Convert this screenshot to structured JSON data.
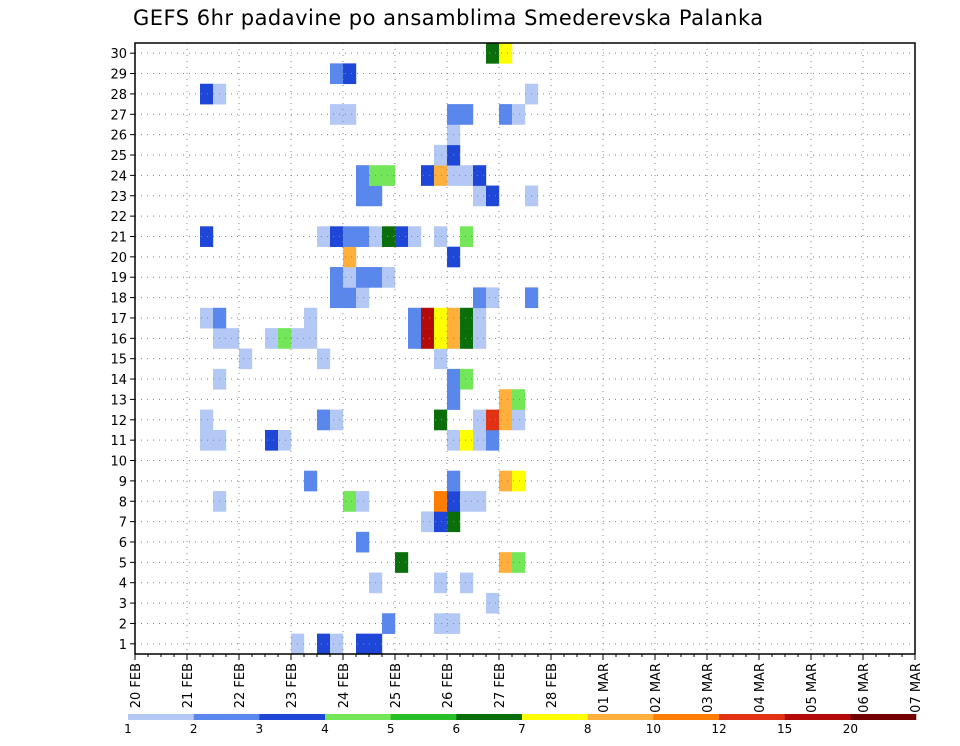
{
  "title": "GEFS 6hr padavine po ansamblima Smederevska Palanka",
  "chart_data": {
    "type": "heatmap",
    "title": "GEFS 6hr padavine po ansamblima Smederevska Palanka",
    "x_tick_labels": [
      "20 FEB",
      "21 FEB",
      "22 FEB",
      "23 FEB",
      "24 FEB",
      "25 FEB",
      "26 FEB",
      "27 FEB",
      "28 FEB",
      "01 MAR",
      "02 MAR",
      "03 MAR",
      "04 MAR",
      "05 MAR",
      "06 MAR",
      "07 MAR"
    ],
    "y_tick_labels": [
      "1",
      "2",
      "3",
      "4",
      "5",
      "6",
      "7",
      "8",
      "9",
      "10",
      "11",
      "12",
      "13",
      "14",
      "15",
      "16",
      "17",
      "18",
      "19",
      "20",
      "21",
      "22",
      "23",
      "24",
      "25",
      "26",
      "27",
      "28",
      "29",
      "30"
    ],
    "x_unit": "6-hour step since 20 FEB 00Z",
    "xlim": [
      0,
      60
    ],
    "ylim": [
      0,
      30
    ],
    "grid": true,
    "colorbar": {
      "labels": [
        "1",
        "2",
        "3",
        "4",
        "5",
        "6",
        "7",
        "8",
        "10",
        "12",
        "15",
        "20"
      ],
      "colors": [
        "#b4c8f5",
        "#5a87eb",
        "#1e46d7",
        "#73e65a",
        "#28be28",
        "#0a6e0a",
        "#ffff00",
        "#ffaf3c",
        "#ff7d00",
        "#e13214",
        "#b40a0a",
        "#730000"
      ]
    },
    "points": [
      {
        "x": 12.5,
        "y": 0,
        "v": "lb"
      },
      {
        "x": 14.5,
        "y": 0,
        "v": "db"
      },
      {
        "x": 15.5,
        "y": 0,
        "v": "lb"
      },
      {
        "x": 17.5,
        "y": 0,
        "v": "db"
      },
      {
        "x": 18.5,
        "y": 0,
        "v": "db"
      },
      {
        "x": 19.5,
        "y": 1,
        "v": "mb"
      },
      {
        "x": 23.5,
        "y": 1,
        "v": "lb"
      },
      {
        "x": 24.5,
        "y": 1,
        "v": "lb"
      },
      {
        "x": 27.5,
        "y": 2,
        "v": "lb"
      },
      {
        "x": 18.5,
        "y": 3,
        "v": "lb"
      },
      {
        "x": 23.5,
        "y": 3,
        "v": "lb"
      },
      {
        "x": 25.5,
        "y": 3,
        "v": "lb"
      },
      {
        "x": 20.5,
        "y": 4,
        "v": "dg"
      },
      {
        "x": 28.5,
        "y": 4,
        "v": "or"
      },
      {
        "x": 29.5,
        "y": 4,
        "v": "lg"
      },
      {
        "x": 17.5,
        "y": 5,
        "v": "mb"
      },
      {
        "x": 22.5,
        "y": 6,
        "v": "lb"
      },
      {
        "x": 23.5,
        "y": 6,
        "v": "db"
      },
      {
        "x": 24.5,
        "y": 6,
        "v": "dg"
      },
      {
        "x": 6.5,
        "y": 7,
        "v": "lb"
      },
      {
        "x": 16.5,
        "y": 7,
        "v": "lg"
      },
      {
        "x": 17.5,
        "y": 7,
        "v": "lb"
      },
      {
        "x": 23.5,
        "y": 7,
        "v": "do"
      },
      {
        "x": 24.5,
        "y": 7,
        "v": "db"
      },
      {
        "x": 25.5,
        "y": 7,
        "v": "lb"
      },
      {
        "x": 26.5,
        "y": 7,
        "v": "lb"
      },
      {
        "x": 13.5,
        "y": 8,
        "v": "mb"
      },
      {
        "x": 24.5,
        "y": 8,
        "v": "mb"
      },
      {
        "x": 28.5,
        "y": 8,
        "v": "or"
      },
      {
        "x": 29.5,
        "y": 8,
        "v": "ye"
      },
      {
        "x": 5.5,
        "y": 10,
        "v": "lb"
      },
      {
        "x": 6.5,
        "y": 10,
        "v": "lb"
      },
      {
        "x": 10.5,
        "y": 10,
        "v": "db"
      },
      {
        "x": 11.5,
        "y": 10,
        "v": "lb"
      },
      {
        "x": 24.5,
        "y": 10,
        "v": "lb"
      },
      {
        "x": 25.5,
        "y": 10,
        "v": "ye"
      },
      {
        "x": 26.5,
        "y": 10,
        "v": "lb"
      },
      {
        "x": 27.5,
        "y": 10,
        "v": "mb"
      },
      {
        "x": 5.5,
        "y": 11,
        "v": "lb"
      },
      {
        "x": 14.5,
        "y": 11,
        "v": "mb"
      },
      {
        "x": 15.5,
        "y": 11,
        "v": "lb"
      },
      {
        "x": 23.5,
        "y": 11,
        "v": "dg"
      },
      {
        "x": 26.5,
        "y": 11,
        "v": "lb"
      },
      {
        "x": 27.5,
        "y": 11,
        "v": "rd"
      },
      {
        "x": 28.5,
        "y": 11,
        "v": "or"
      },
      {
        "x": 29.5,
        "y": 11,
        "v": "lb"
      },
      {
        "x": 24.5,
        "y": 12,
        "v": "mb"
      },
      {
        "x": 28.5,
        "y": 12,
        "v": "or"
      },
      {
        "x": 29.5,
        "y": 12,
        "v": "lg"
      },
      {
        "x": 6.5,
        "y": 13,
        "v": "lb"
      },
      {
        "x": 24.5,
        "y": 13,
        "v": "mb"
      },
      {
        "x": 25.5,
        "y": 13,
        "v": "lg"
      },
      {
        "x": 8.5,
        "y": 14,
        "v": "lb"
      },
      {
        "x": 14.5,
        "y": 14,
        "v": "lb"
      },
      {
        "x": 23.5,
        "y": 14,
        "v": "lb"
      },
      {
        "x": 6.5,
        "y": 15,
        "v": "lb"
      },
      {
        "x": 7.5,
        "y": 15,
        "v": "lb"
      },
      {
        "x": 10.5,
        "y": 15,
        "v": "lb"
      },
      {
        "x": 11.5,
        "y": 15,
        "v": "lg"
      },
      {
        "x": 12.5,
        "y": 15,
        "v": "lb"
      },
      {
        "x": 13.5,
        "y": 15,
        "v": "lb"
      },
      {
        "x": 21.5,
        "y": 15,
        "v": "mb"
      },
      {
        "x": 22.5,
        "y": 15,
        "v": "dr"
      },
      {
        "x": 23.5,
        "y": 15,
        "v": "ye"
      },
      {
        "x": 24.5,
        "y": 15,
        "v": "or"
      },
      {
        "x": 25.5,
        "y": 15,
        "v": "dg"
      },
      {
        "x": 26.5,
        "y": 15,
        "v": "lb"
      },
      {
        "x": 5.5,
        "y": 16,
        "v": "lb"
      },
      {
        "x": 6.5,
        "y": 16,
        "v": "mb"
      },
      {
        "x": 13.5,
        "y": 16,
        "v": "lb"
      },
      {
        "x": 21.5,
        "y": 16,
        "v": "mb"
      },
      {
        "x": 22.5,
        "y": 16,
        "v": "dr"
      },
      {
        "x": 23.5,
        "y": 16,
        "v": "ye"
      },
      {
        "x": 24.5,
        "y": 16,
        "v": "or"
      },
      {
        "x": 25.5,
        "y": 16,
        "v": "dg"
      },
      {
        "x": 26.5,
        "y": 16,
        "v": "lb"
      },
      {
        "x": 15.5,
        "y": 17,
        "v": "mb"
      },
      {
        "x": 16.5,
        "y": 17,
        "v": "mb"
      },
      {
        "x": 17.5,
        "y": 17,
        "v": "lb"
      },
      {
        "x": 26.5,
        "y": 17,
        "v": "mb"
      },
      {
        "x": 27.5,
        "y": 17,
        "v": "lb"
      },
      {
        "x": 30.5,
        "y": 17,
        "v": "mb"
      },
      {
        "x": 15.5,
        "y": 18,
        "v": "mb"
      },
      {
        "x": 16.5,
        "y": 18,
        "v": "lb"
      },
      {
        "x": 17.5,
        "y": 18,
        "v": "mb"
      },
      {
        "x": 18.5,
        "y": 18,
        "v": "mb"
      },
      {
        "x": 19.5,
        "y": 18,
        "v": "lb"
      },
      {
        "x": 16.5,
        "y": 19,
        "v": "or"
      },
      {
        "x": 24.5,
        "y": 19,
        "v": "db"
      },
      {
        "x": 5.5,
        "y": 20,
        "v": "db"
      },
      {
        "x": 14.5,
        "y": 20,
        "v": "lb"
      },
      {
        "x": 15.5,
        "y": 20,
        "v": "db"
      },
      {
        "x": 16.5,
        "y": 20,
        "v": "mb"
      },
      {
        "x": 17.5,
        "y": 20,
        "v": "mb"
      },
      {
        "x": 18.5,
        "y": 20,
        "v": "lb"
      },
      {
        "x": 19.5,
        "y": 20,
        "v": "dg"
      },
      {
        "x": 20.5,
        "y": 20,
        "v": "db"
      },
      {
        "x": 21.5,
        "y": 20,
        "v": "lb"
      },
      {
        "x": 23.5,
        "y": 20,
        "v": "lb"
      },
      {
        "x": 25.5,
        "y": 20,
        "v": "lg"
      },
      {
        "x": 17.5,
        "y": 22,
        "v": "mb"
      },
      {
        "x": 18.5,
        "y": 22,
        "v": "mb"
      },
      {
        "x": 26.5,
        "y": 22,
        "v": "lb"
      },
      {
        "x": 27.5,
        "y": 22,
        "v": "db"
      },
      {
        "x": 30.5,
        "y": 22,
        "v": "lb"
      },
      {
        "x": 17.5,
        "y": 23,
        "v": "mb"
      },
      {
        "x": 18.5,
        "y": 23,
        "v": "lg"
      },
      {
        "x": 19.5,
        "y": 23,
        "v": "lg"
      },
      {
        "x": 22.5,
        "y": 23,
        "v": "db"
      },
      {
        "x": 23.5,
        "y": 23,
        "v": "or"
      },
      {
        "x": 24.5,
        "y": 23,
        "v": "lb"
      },
      {
        "x": 25.5,
        "y": 23,
        "v": "lb"
      },
      {
        "x": 26.5,
        "y": 23,
        "v": "db"
      },
      {
        "x": 23.5,
        "y": 24,
        "v": "lb"
      },
      {
        "x": 24.5,
        "y": 24,
        "v": "db"
      },
      {
        "x": 24.5,
        "y": 25,
        "v": "lb"
      },
      {
        "x": 15.5,
        "y": 26,
        "v": "lb"
      },
      {
        "x": 16.5,
        "y": 26,
        "v": "lb"
      },
      {
        "x": 24.5,
        "y": 26,
        "v": "mb"
      },
      {
        "x": 25.5,
        "y": 26,
        "v": "mb"
      },
      {
        "x": 28.5,
        "y": 26,
        "v": "mb"
      },
      {
        "x": 29.5,
        "y": 26,
        "v": "lb"
      },
      {
        "x": 5.5,
        "y": 27,
        "v": "db"
      },
      {
        "x": 6.5,
        "y": 27,
        "v": "lb"
      },
      {
        "x": 30.5,
        "y": 27,
        "v": "lb"
      },
      {
        "x": 15.5,
        "y": 28,
        "v": "mb"
      },
      {
        "x": 16.5,
        "y": 28,
        "v": "db"
      },
      {
        "x": 27.5,
        "y": 29,
        "v": "dg"
      },
      {
        "x": 28.5,
        "y": 29,
        "v": "ye"
      }
    ]
  }
}
